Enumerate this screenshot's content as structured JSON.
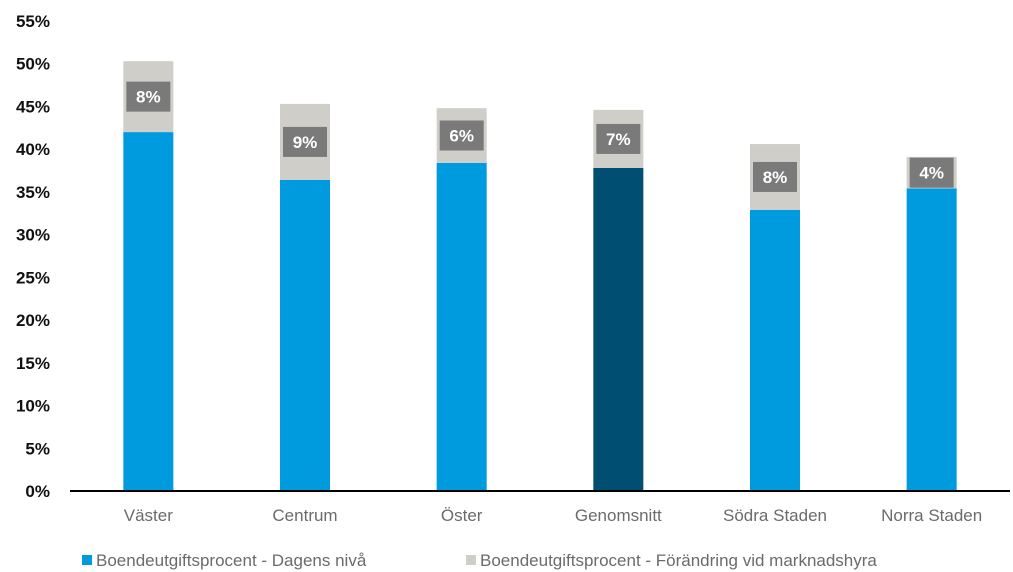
{
  "chart_data": {
    "type": "bar",
    "stacked": true,
    "title": "",
    "xlabel": "",
    "ylabel": "",
    "ylim": [
      0,
      0.55
    ],
    "y_ticks": [
      "0%",
      "5%",
      "10%",
      "15%",
      "20%",
      "25%",
      "30%",
      "35%",
      "40%",
      "45%",
      "50%",
      "55%"
    ],
    "grid": false,
    "legend_position": "bottom",
    "categories": [
      "Väster",
      "Centrum",
      "Öster",
      "Genomsnitt",
      "Södra Staden",
      "Norra Staden"
    ],
    "series": [
      {
        "name": "Boendeutgiftsprocent - Dagens nivå",
        "color": "#009ade",
        "highlight_color": "#004e71",
        "highlight_category": "Genomsnitt",
        "values": [
          0.42,
          0.364,
          0.384,
          0.378,
          0.329,
          0.354
        ]
      },
      {
        "name": "Boendeutgiftsprocent - Förändring vid marknadshyra",
        "color": "#d0cec9",
        "values": [
          0.083,
          0.089,
          0.064,
          0.068,
          0.077,
          0.037
        ],
        "data_labels": [
          "8%",
          "9%",
          "6%",
          "7%",
          "8%",
          "4%"
        ]
      }
    ],
    "label_box_color": "#7a7a7a"
  }
}
